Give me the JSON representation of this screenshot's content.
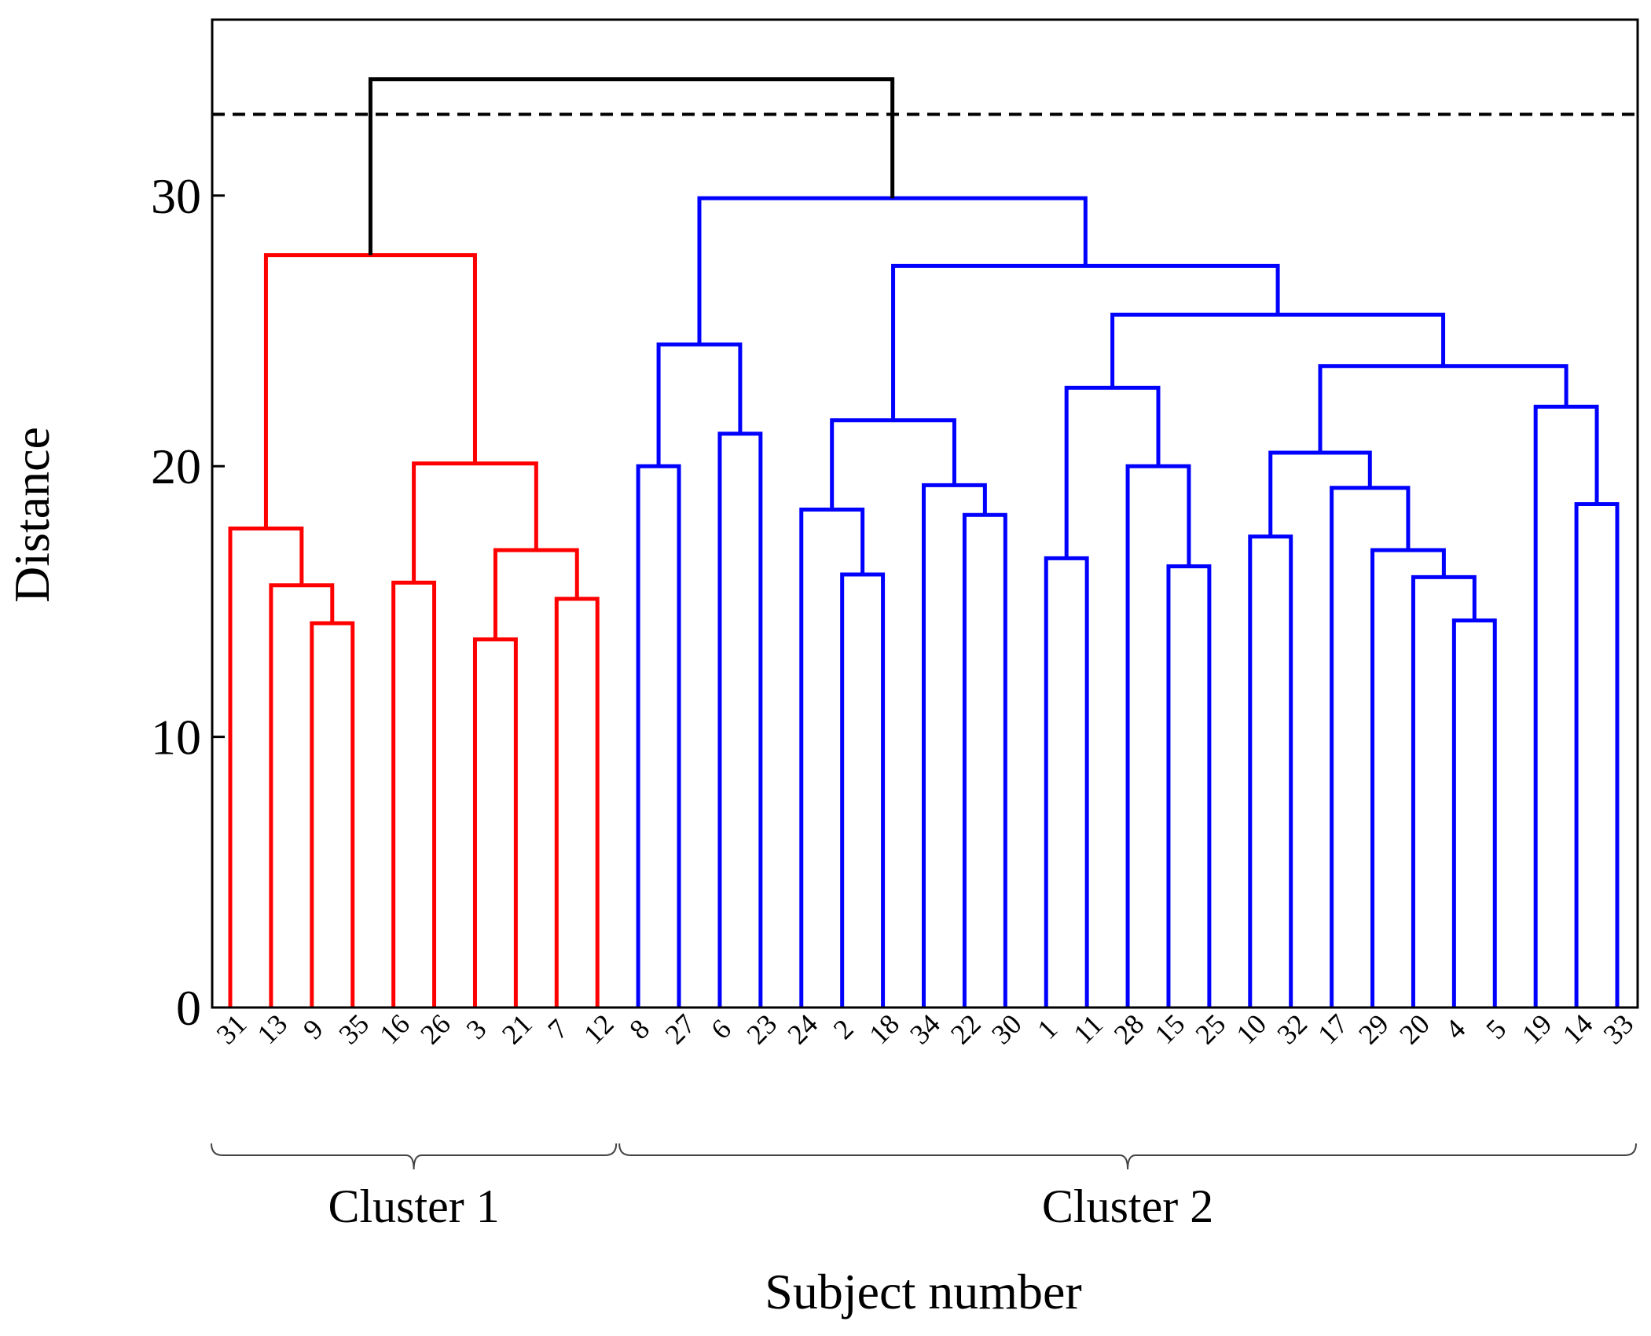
{
  "chart_data": {
    "type": "dendrogram",
    "title": "",
    "xlabel": "Subject number",
    "ylabel": "Distance",
    "ylim": [
      0,
      36.5
    ],
    "yticks": [
      0,
      10,
      20,
      30
    ],
    "threshold": 33,
    "leaves": [
      "31",
      "13",
      "9",
      "35",
      "16",
      "26",
      "3",
      "21",
      "7",
      "12",
      "8",
      "27",
      "6",
      "23",
      "24",
      "2",
      "18",
      "34",
      "22",
      "30",
      "1",
      "11",
      "28",
      "15",
      "25",
      "10",
      "32",
      "17",
      "29",
      "20",
      "4",
      "5",
      "19",
      "14",
      "33"
    ],
    "merges": [
      {
        "a": "L2",
        "b": "L3",
        "h": 14.2,
        "color": "red"
      },
      {
        "a": "L1",
        "b": "M0",
        "h": 15.6,
        "color": "red"
      },
      {
        "a": "L0",
        "b": "M1",
        "h": 17.7,
        "color": "red"
      },
      {
        "a": "L4",
        "b": "L5",
        "h": 15.7,
        "color": "red"
      },
      {
        "a": "L6",
        "b": "L7",
        "h": 13.6,
        "color": "red"
      },
      {
        "a": "L8",
        "b": "L9",
        "h": 15.1,
        "color": "red"
      },
      {
        "a": "M4",
        "b": "M5",
        "h": 16.9,
        "color": "red"
      },
      {
        "a": "M3",
        "b": "M6",
        "h": 20.1,
        "color": "red"
      },
      {
        "a": "M2",
        "b": "M7",
        "h": 27.8,
        "color": "red"
      },
      {
        "a": "L10",
        "b": "L11",
        "h": 20.0,
        "color": "blue"
      },
      {
        "a": "L12",
        "b": "L13",
        "h": 21.2,
        "color": "blue"
      },
      {
        "a": "M9",
        "b": "M10",
        "h": 24.5,
        "color": "blue"
      },
      {
        "a": "L15",
        "b": "L16",
        "h": 16.0,
        "color": "blue"
      },
      {
        "a": "L14",
        "b": "M12",
        "h": 18.4,
        "color": "blue"
      },
      {
        "a": "L18",
        "b": "L19",
        "h": 18.2,
        "color": "blue"
      },
      {
        "a": "L17",
        "b": "M14",
        "h": 19.3,
        "color": "blue"
      },
      {
        "a": "M13",
        "b": "M15",
        "h": 21.7,
        "color": "blue"
      },
      {
        "a": "L23",
        "b": "L24",
        "h": 16.3,
        "color": "blue"
      },
      {
        "a": "L22",
        "b": "M17",
        "h": 20.0,
        "color": "blue"
      },
      {
        "a": "L20",
        "b": "L21",
        "h": 16.6,
        "color": "blue"
      },
      {
        "a": "M19",
        "b": "M18",
        "h": 22.9,
        "color": "blue"
      },
      {
        "a": "L25",
        "b": "L26",
        "h": 17.4,
        "color": "blue"
      },
      {
        "a": "L30",
        "b": "L31",
        "h": 14.3,
        "color": "blue"
      },
      {
        "a": "L29",
        "b": "M22",
        "h": 15.9,
        "color": "blue"
      },
      {
        "a": "L28",
        "b": "M23",
        "h": 16.9,
        "color": "blue"
      },
      {
        "a": "L27",
        "b": "M24",
        "h": 19.2,
        "color": "blue"
      },
      {
        "a": "M21",
        "b": "M25",
        "h": 20.5,
        "color": "blue"
      },
      {
        "a": "L33",
        "b": "L34",
        "h": 18.6,
        "color": "blue"
      },
      {
        "a": "L32",
        "b": "M27",
        "h": 22.2,
        "color": "blue"
      },
      {
        "a": "M26",
        "b": "M28",
        "h": 23.7,
        "color": "blue"
      },
      {
        "a": "M20",
        "b": "M29",
        "h": 25.6,
        "color": "blue"
      },
      {
        "a": "M16",
        "b": "M30",
        "h": 27.4,
        "color": "blue"
      },
      {
        "a": "M11",
        "b": "M31",
        "h": 29.9,
        "color": "blue"
      },
      {
        "a": "M8",
        "b": "M32",
        "h": 34.3,
        "color": "black"
      }
    ],
    "clusters": [
      {
        "label": "Cluster 1",
        "from": 0,
        "to": 9
      },
      {
        "label": "Cluster 2",
        "from": 10,
        "to": 34
      }
    ],
    "colors": {
      "red": "#ff0000",
      "blue": "#0000ff",
      "black": "#000000"
    }
  }
}
